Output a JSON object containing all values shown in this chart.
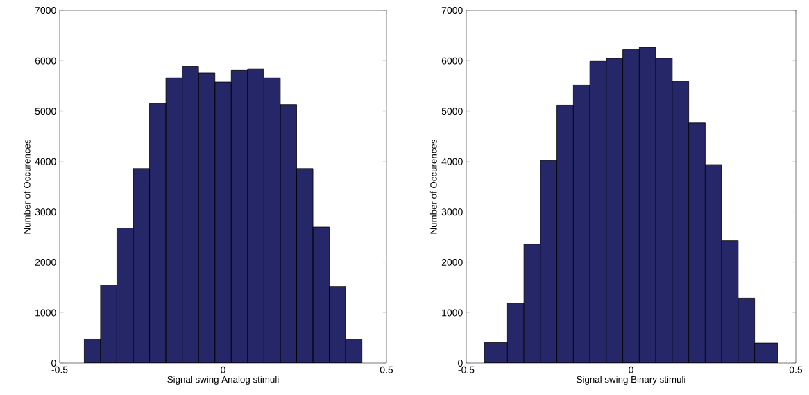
{
  "chart_data": [
    {
      "type": "histogram",
      "xlabel": "Signal swing Analog stimuli",
      "ylabel": "Number of Occurences",
      "color": "#262769",
      "bins": [
        -0.425,
        -0.375,
        -0.325,
        -0.275,
        -0.225,
        -0.175,
        -0.125,
        -0.075,
        -0.025,
        0.025,
        0.075,
        0.125,
        0.175,
        0.225,
        0.275,
        0.325,
        0.375,
        0.425
      ],
      "values": [
        476,
        1550,
        2680,
        3860,
        5150,
        5660,
        5890,
        5760,
        5580,
        5810,
        5840,
        5660,
        5130,
        3860,
        2700,
        1520,
        466
      ],
      "xlim": [
        -0.5,
        0.5
      ],
      "ylim": [
        0,
        7000
      ],
      "xticks": [
        -0.5,
        0,
        0.5
      ],
      "yticks": [
        0,
        1000,
        2000,
        3000,
        4000,
        5000,
        6000,
        7000
      ]
    },
    {
      "type": "histogram",
      "xlabel": "Signal swing Binary stimuli",
      "ylabel": "Number of Occurences",
      "color": "#262769",
      "bins": [
        -0.445,
        -0.375,
        -0.325,
        -0.275,
        -0.225,
        -0.175,
        -0.125,
        -0.075,
        -0.025,
        0.025,
        0.075,
        0.125,
        0.175,
        0.225,
        0.275,
        0.325,
        0.375,
        0.445
      ],
      "values": [
        407,
        1190,
        2360,
        4020,
        5120,
        5520,
        5990,
        6050,
        6220,
        6270,
        6050,
        5590,
        4770,
        3940,
        2430,
        1290,
        398
      ],
      "xlim": [
        -0.5,
        0.5
      ],
      "ylim": [
        0,
        7000
      ],
      "xticks": [
        -0.5,
        0,
        0.5
      ],
      "yticks": [
        0,
        1000,
        2000,
        3000,
        4000,
        5000,
        6000,
        7000
      ]
    }
  ]
}
